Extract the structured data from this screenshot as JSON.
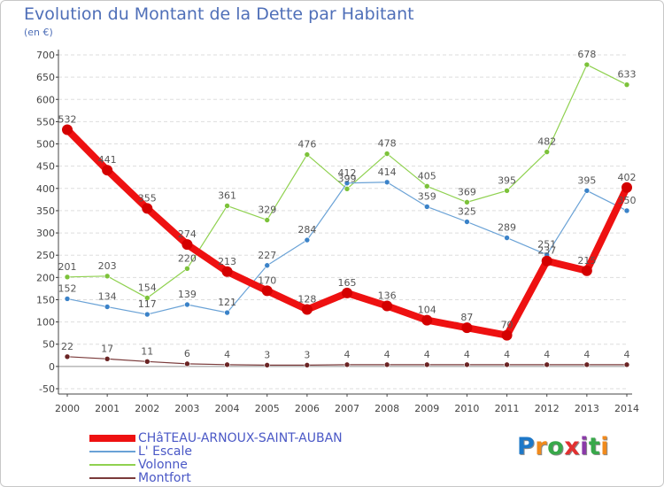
{
  "chart_data": {
    "type": "line",
    "title": "Evolution du Montant de la Dette par Habitant",
    "subtitle": "(en €)",
    "categories": [
      "2000",
      "2001",
      "2002",
      "2003",
      "2004",
      "2005",
      "2006",
      "2007",
      "2008",
      "2009",
      "2010",
      "2011",
      "2012",
      "2013",
      "2014"
    ],
    "ylim": [
      -50,
      700
    ],
    "yticks": [
      -50,
      0,
      50,
      100,
      150,
      200,
      250,
      300,
      350,
      400,
      450,
      500,
      550,
      600,
      650,
      700
    ],
    "grid": true,
    "series": [
      {
        "name": "Volonne",
        "color": "#8fd14f",
        "marker": "#7cc23a",
        "width": 1.2,
        "radius": 3,
        "values": [
          201,
          203,
          154,
          220,
          361,
          329,
          476,
          399,
          478,
          405,
          369,
          395,
          482,
          678,
          633
        ],
        "labels": [
          "201",
          "203",
          "154",
          "220",
          "361",
          "329",
          "476",
          "399",
          "478",
          "405",
          "369",
          "395",
          "482",
          "678",
          "633"
        ]
      },
      {
        "name": "L' Escale",
        "color": "#6aa2d6",
        "marker": "#3a82c8",
        "width": 1.2,
        "radius": 3,
        "values": [
          152,
          134,
          117,
          139,
          121,
          227,
          284,
          412,
          414,
          359,
          325,
          289,
          251,
          395,
          350
        ],
        "labels": [
          "152",
          "134",
          "117",
          "139",
          "121",
          "227",
          "284",
          "412",
          "414",
          "359",
          "325",
          "289",
          "251",
          "395",
          "350"
        ]
      },
      {
        "name": "Montfort",
        "color": "#7a3a3a",
        "marker": "#6a2424",
        "width": 1.2,
        "radius": 3,
        "values": [
          22,
          17,
          11,
          6,
          4,
          3,
          3,
          4,
          4,
          4,
          4,
          4,
          4,
          4,
          4
        ],
        "labels": [
          "22",
          "17",
          "11",
          "6",
          "4",
          "3",
          "3",
          "4",
          "4",
          "4",
          "4",
          "4",
          "4",
          "4",
          "4"
        ]
      },
      {
        "name": "CHâTEAU-ARNOUX-SAINT-AUBAN",
        "color": "#ee1111",
        "marker": "#d40000",
        "width": 8,
        "radius": 6,
        "values": [
          532,
          441,
          355,
          274,
          213,
          170,
          128,
          165,
          136,
          104,
          87,
          70,
          237,
          215,
          402
        ],
        "labels": [
          "532",
          "441",
          "355",
          "274",
          "213",
          "170",
          "128",
          "165",
          "136",
          "104",
          "87",
          "70",
          "237",
          "215",
          "402"
        ]
      }
    ],
    "legend": [
      "CHâTEAU-ARNOUX-SAINT-AUBAN",
      "L' Escale",
      "Volonne",
      "Montfort"
    ],
    "legend_colors": [
      "#ee1111",
      "#6aa2d6",
      "#8fd14f",
      "#7a3a3a"
    ]
  },
  "logo": {
    "letters": [
      "P",
      "r",
      "o",
      "x",
      "i",
      "t",
      "i"
    ],
    "colors": [
      "#1e78c8",
      "#f08a1c",
      "#38a84a",
      "#e23030",
      "#8a3aa8",
      "#38a84a",
      "#f08a1c"
    ]
  }
}
